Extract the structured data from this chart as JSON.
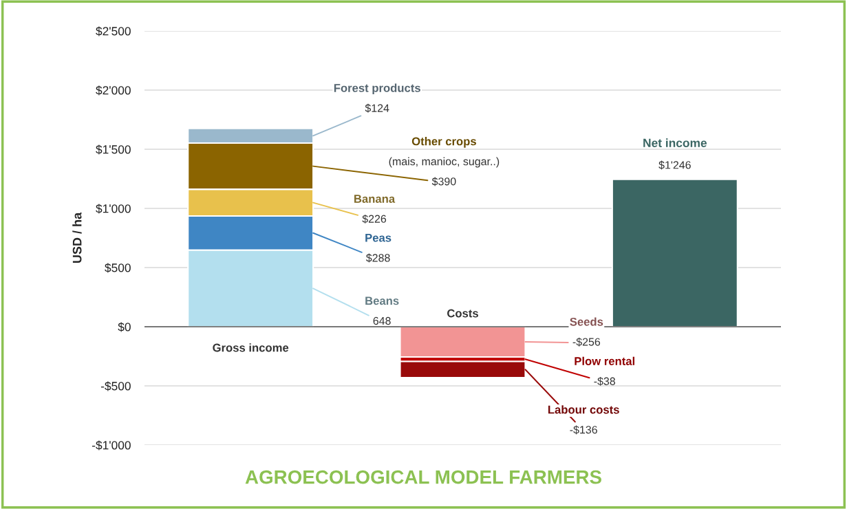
{
  "chart_data": {
    "type": "bar",
    "stacked": true,
    "title": "AGROECOLOGICAL MODEL FARMERS",
    "ylabel": "USD / ha",
    "categories": [
      "Gross income",
      "Costs",
      "Net income"
    ],
    "series": [
      {
        "name": "Beans",
        "color": "#b3dfee",
        "values": [
          648,
          null,
          null
        ],
        "value_labels": [
          "648",
          null,
          null
        ]
      },
      {
        "name": "Peas",
        "color": "#3f86c4",
        "values": [
          288,
          null,
          null
        ],
        "value_labels": [
          "$288",
          null,
          null
        ]
      },
      {
        "name": "Banana",
        "color": "#e8c14c",
        "values": [
          226,
          null,
          null
        ],
        "value_labels": [
          "$226",
          null,
          null
        ]
      },
      {
        "name": "Other crops",
        "color": "#8b6400",
        "values": [
          390,
          null,
          null
        ],
        "value_labels": [
          "$390",
          null,
          null
        ]
      },
      {
        "name": "Forest products",
        "color": "#9ab8cc",
        "values": [
          124,
          null,
          null
        ],
        "value_labels": [
          "$124",
          null,
          null
        ]
      },
      {
        "name": "Seeds",
        "color": "#f29494",
        "values": [
          null,
          -256,
          null
        ],
        "value_labels": [
          null,
          "-$256",
          null
        ]
      },
      {
        "name": "Plow rental",
        "color": "#c00000",
        "values": [
          null,
          -38,
          null
        ],
        "value_labels": [
          null,
          "-$38",
          null
        ]
      },
      {
        "name": "Labour costs",
        "color": "#990a0a",
        "values": [
          null,
          -136,
          null
        ],
        "value_labels": [
          null,
          "-$136",
          null
        ]
      },
      {
        "color": "#3b6663",
        "values": [
          null,
          null,
          1246
        ],
        "value_labels": [
          null,
          null,
          "$1'246"
        ]
      }
    ],
    "annotations": [
      "(mais, manioc, sugar..)"
    ],
    "ylim": [
      -1000,
      2500
    ],
    "yticks": [
      {
        "value": -1000,
        "label": "-$1'000"
      },
      {
        "value": -500,
        "label": "-$500"
      },
      {
        "value": 0,
        "label": "$0"
      },
      {
        "value": 500,
        "label": "$500"
      },
      {
        "value": 1000,
        "label": "$1'000"
      },
      {
        "value": 1500,
        "label": "$1'500"
      },
      {
        "value": 2000,
        "label": "$2'000"
      },
      {
        "value": 2500,
        "label": "$2'500"
      }
    ],
    "grid": "y"
  }
}
